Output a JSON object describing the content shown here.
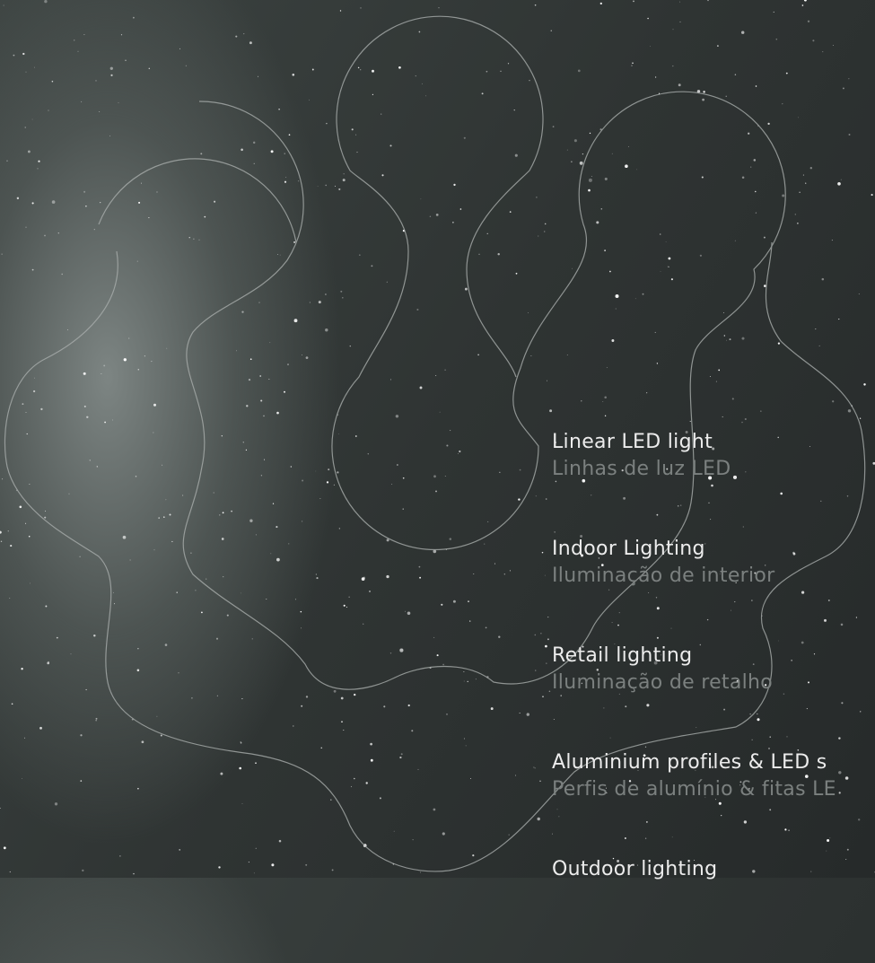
{
  "menu": {
    "items": [
      {
        "title": "Linear LED light",
        "subtitle": "Linhas de luz LED"
      },
      {
        "title": "Indoor Lighting",
        "subtitle": "Iluminação de interior"
      },
      {
        "title": "Retail lighting",
        "subtitle": "Iluminação de retalho"
      },
      {
        "title": "Aluminium profiles & LED s",
        "subtitle": "Perfis de alumínio & fitas LE"
      },
      {
        "title": "Outdoor lighting"
      }
    ]
  }
}
